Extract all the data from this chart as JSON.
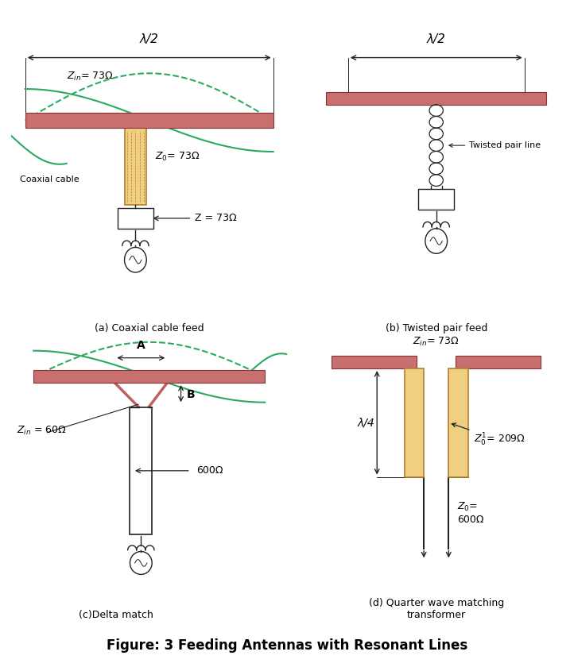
{
  "title": "Figure: 3 Feeding Antennas with Resonant Lines",
  "antenna_color": "#c87070",
  "antenna_edge": "#8B3030",
  "coax_fill": "#f0d080",
  "coax_edge": "#b08030",
  "wave_color": "#2aaa60",
  "delta_color": "#c06060",
  "line_color": "#222222",
  "bg_color": "#ffffff",
  "panel_labels": [
    "(a) Coaxial cable feed",
    "(b) Twisted pair feed",
    "(c)Delta match",
    "(d) Quarter wave matching\ntransformer"
  ],
  "lambda_label": "λ/2",
  "lambda4_label": "λ/4"
}
